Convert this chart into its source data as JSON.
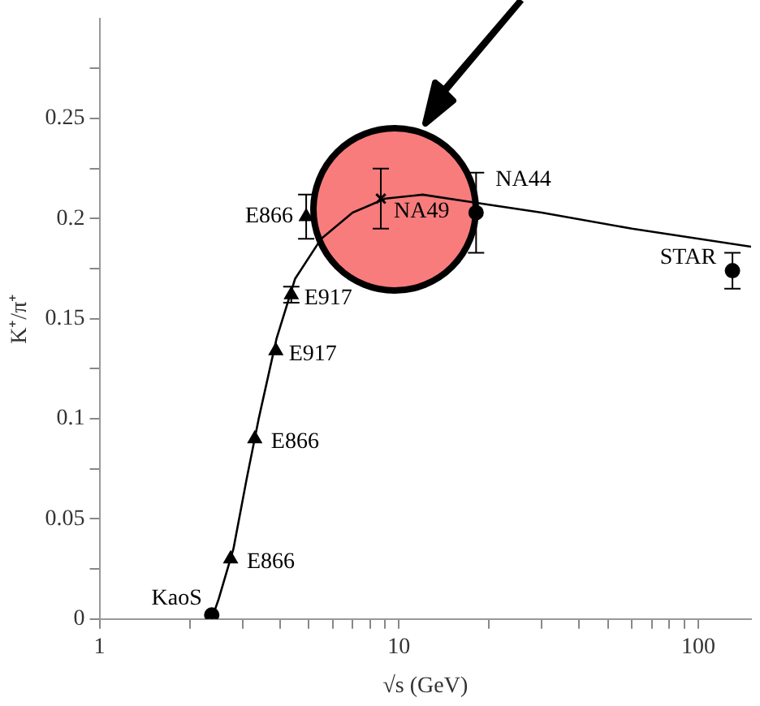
{
  "chart_data": {
    "type": "scatter",
    "xlabel": "√s (GeV)",
    "ylabel": "K⁺/π⁺",
    "log": "x",
    "legend": false,
    "xlim": [
      1,
      150
    ],
    "ylim": [
      0,
      0.3
    ],
    "xticks": [
      1,
      {
        "value": 2,
        "label": null
      },
      {
        "value": 3,
        "label": null
      },
      {
        "value": 4,
        "label": null
      },
      {
        "value": 5,
        "label": null
      },
      {
        "value": 6,
        "label": null
      },
      {
        "value": 7,
        "label": null
      },
      {
        "value": 8,
        "label": null
      },
      {
        "value": 9,
        "label": null
      },
      10,
      {
        "value": 20,
        "label": null
      },
      {
        "value": 30,
        "label": null
      },
      {
        "value": 40,
        "label": null
      },
      {
        "value": 50,
        "label": null
      },
      {
        "value": 60,
        "label": null
      },
      {
        "value": 70,
        "label": null
      },
      {
        "value": 80,
        "label": null
      },
      {
        "value": 90,
        "label": null
      },
      100
    ],
    "yticks": [
      0,
      {
        "value": 0.025,
        "label": null
      },
      0.05,
      {
        "value": 0.075,
        "label": null
      },
      0.1,
      {
        "value": 0.125,
        "label": null
      },
      0.15,
      {
        "value": 0.175,
        "label": null
      },
      0.2,
      {
        "value": 0.225,
        "label": null
      },
      0.25,
      {
        "value": 0.275,
        "label": null
      }
    ],
    "series": [
      {
        "type": "line",
        "color": "#000000",
        "marker": "none",
        "line_style": "solid",
        "x": [
          2.37,
          2.5,
          2.8,
          3.1,
          3.4,
          3.9,
          4.5,
          5.5,
          7,
          9,
          12,
          18,
          30,
          60,
          150
        ],
        "values": [
          0,
          0.01,
          0.035,
          0.07,
          0.1,
          0.14,
          0.17,
          0.19,
          0.203,
          0.21,
          0.212,
          0.208,
          0.203,
          0.195,
          0.186
        ]
      },
      {
        "color": "#000000",
        "marker": "triangle",
        "x": [
          2.74,
          3.3,
          3.88,
          4.37,
          4.9
        ],
        "values": [
          0.03,
          0.09,
          0.134,
          0.162,
          0.201
        ],
        "errors": [
          null,
          null,
          null,
          0.004,
          0.011
        ]
      },
      {
        "color": "#000000",
        "marker": "circle",
        "x": [
          2.37,
          18.1,
          130
        ],
        "values": [
          0.002,
          0.203,
          0.174
        ],
        "errors": [
          null,
          0.02,
          0.009
        ]
      },
      {
        "color": "#000000",
        "marker": "cross",
        "x": [
          8.7
        ],
        "values": [
          0.21
        ],
        "errors": [
          0.015
        ]
      }
    ],
    "annotations": [
      {
        "text": "KaoS",
        "x": 2.37,
        "y": 0.002
      },
      {
        "text": "E866",
        "x": 2.74,
        "y": 0.03
      },
      {
        "text": "E866",
        "x": 3.3,
        "y": 0.09
      },
      {
        "text": "E917",
        "x": 3.88,
        "y": 0.134
      },
      {
        "text": "E917",
        "x": 4.37,
        "y": 0.162
      },
      {
        "text": "E866",
        "x": 4.9,
        "y": 0.201
      },
      {
        "text": "NA49",
        "x": 8.7,
        "y": 0.21
      },
      {
        "text": "NA44",
        "x": 18.1,
        "y": 0.203
      },
      {
        "text": "STAR",
        "x": 130,
        "y": 0.174
      }
    ]
  }
}
